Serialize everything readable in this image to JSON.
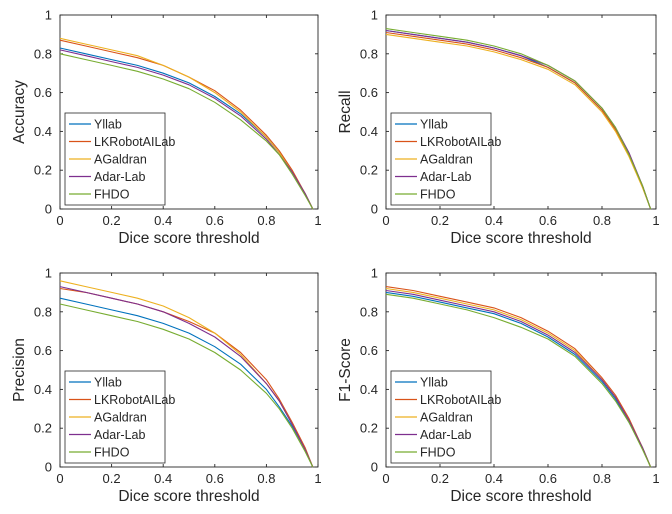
{
  "series_colors": {
    "Yllab": "#0072BD",
    "LKRobotAILab": "#D95319",
    "AGaldran": "#EDB120",
    "Adar-Lab": "#7E2F8E",
    "FHDO": "#77AC30"
  },
  "chart_data": [
    {
      "type": "line",
      "xlabel": "Dice score threshold",
      "ylabel": "Accuracy",
      "xlim": [
        0,
        1
      ],
      "ylim": [
        0,
        1
      ],
      "xticks": [
        "0",
        "0.2",
        "0.4",
        "0.6",
        "0.8",
        "1"
      ],
      "yticks": [
        "0",
        "0.2",
        "0.4",
        "0.6",
        "0.8",
        "1"
      ],
      "legend_position": "bottom-left",
      "grid": false,
      "x": [
        0,
        0.1,
        0.2,
        0.3,
        0.4,
        0.5,
        0.6,
        0.7,
        0.8,
        0.85,
        0.9,
        0.95,
        0.98
      ],
      "series": [
        {
          "name": "Yllab",
          "values": [
            0.83,
            0.8,
            0.77,
            0.74,
            0.7,
            0.65,
            0.58,
            0.49,
            0.37,
            0.29,
            0.19,
            0.08,
            0.0
          ]
        },
        {
          "name": "LKRobotAILab",
          "values": [
            0.87,
            0.84,
            0.81,
            0.78,
            0.74,
            0.68,
            0.61,
            0.51,
            0.38,
            0.3,
            0.2,
            0.08,
            0.0
          ]
        },
        {
          "name": "AGaldran",
          "values": [
            0.88,
            0.85,
            0.82,
            0.79,
            0.74,
            0.68,
            0.6,
            0.5,
            0.37,
            0.29,
            0.19,
            0.08,
            0.0
          ]
        },
        {
          "name": "Adar-Lab",
          "values": [
            0.82,
            0.79,
            0.76,
            0.73,
            0.69,
            0.64,
            0.57,
            0.48,
            0.36,
            0.28,
            0.19,
            0.08,
            0.0
          ]
        },
        {
          "name": "FHDO",
          "values": [
            0.8,
            0.77,
            0.74,
            0.71,
            0.67,
            0.62,
            0.55,
            0.46,
            0.35,
            0.28,
            0.18,
            0.07,
            0.0
          ]
        }
      ]
    },
    {
      "type": "line",
      "xlabel": "Dice score threshold",
      "ylabel": "Recall",
      "xlim": [
        0,
        1
      ],
      "ylim": [
        0,
        1
      ],
      "xticks": [
        "0",
        "0.2",
        "0.4",
        "0.6",
        "0.8",
        "1"
      ],
      "yticks": [
        "0",
        "0.2",
        "0.4",
        "0.6",
        "0.8",
        "1"
      ],
      "legend_position": "bottom-left",
      "grid": false,
      "x": [
        0,
        0.1,
        0.2,
        0.3,
        0.4,
        0.5,
        0.6,
        0.7,
        0.8,
        0.85,
        0.9,
        0.95,
        0.98
      ],
      "series": [
        {
          "name": "Yllab",
          "values": [
            0.92,
            0.9,
            0.88,
            0.86,
            0.83,
            0.79,
            0.73,
            0.65,
            0.51,
            0.41,
            0.28,
            0.12,
            0.0
          ]
        },
        {
          "name": "LKRobotAILab",
          "values": [
            0.91,
            0.89,
            0.87,
            0.85,
            0.82,
            0.78,
            0.73,
            0.65,
            0.51,
            0.41,
            0.28,
            0.12,
            0.0
          ]
        },
        {
          "name": "AGaldran",
          "values": [
            0.9,
            0.88,
            0.86,
            0.84,
            0.81,
            0.77,
            0.72,
            0.64,
            0.5,
            0.4,
            0.27,
            0.11,
            0.0
          ]
        },
        {
          "name": "Adar-Lab",
          "values": [
            0.92,
            0.9,
            0.88,
            0.86,
            0.83,
            0.79,
            0.74,
            0.66,
            0.52,
            0.42,
            0.29,
            0.12,
            0.0
          ]
        },
        {
          "name": "FHDO",
          "values": [
            0.93,
            0.91,
            0.89,
            0.87,
            0.84,
            0.8,
            0.74,
            0.66,
            0.52,
            0.42,
            0.28,
            0.12,
            0.0
          ]
        }
      ]
    },
    {
      "type": "line",
      "xlabel": "Dice score threshold",
      "ylabel": "Precision",
      "xlim": [
        0,
        1
      ],
      "ylim": [
        0,
        1
      ],
      "xticks": [
        "0",
        "0.2",
        "0.4",
        "0.6",
        "0.8",
        "1"
      ],
      "yticks": [
        "0",
        "0.2",
        "0.4",
        "0.6",
        "0.8",
        "1"
      ],
      "legend_position": "bottom-left",
      "grid": false,
      "x": [
        0,
        0.1,
        0.2,
        0.3,
        0.4,
        0.5,
        0.6,
        0.7,
        0.8,
        0.85,
        0.9,
        0.95,
        0.98
      ],
      "series": [
        {
          "name": "Yllab",
          "values": [
            0.87,
            0.84,
            0.81,
            0.78,
            0.74,
            0.69,
            0.62,
            0.53,
            0.4,
            0.31,
            0.21,
            0.09,
            0.0
          ]
        },
        {
          "name": "LKRobotAILab",
          "values": [
            0.92,
            0.9,
            0.87,
            0.84,
            0.8,
            0.75,
            0.69,
            0.59,
            0.45,
            0.35,
            0.23,
            0.1,
            0.0
          ]
        },
        {
          "name": "AGaldran",
          "values": [
            0.96,
            0.93,
            0.9,
            0.87,
            0.83,
            0.77,
            0.69,
            0.58,
            0.43,
            0.34,
            0.22,
            0.09,
            0.0
          ]
        },
        {
          "name": "Adar-Lab",
          "values": [
            0.93,
            0.9,
            0.87,
            0.84,
            0.8,
            0.74,
            0.67,
            0.57,
            0.43,
            0.34,
            0.22,
            0.09,
            0.0
          ]
        },
        {
          "name": "FHDO",
          "values": [
            0.84,
            0.81,
            0.78,
            0.75,
            0.71,
            0.66,
            0.59,
            0.5,
            0.38,
            0.3,
            0.2,
            0.08,
            0.0
          ]
        }
      ]
    },
    {
      "type": "line",
      "xlabel": "Dice score threshold",
      "ylabel": "F1-Score",
      "xlim": [
        0,
        1
      ],
      "ylim": [
        0,
        1
      ],
      "xticks": [
        "0",
        "0.2",
        "0.4",
        "0.6",
        "0.8",
        "1"
      ],
      "yticks": [
        "0",
        "0.2",
        "0.4",
        "0.6",
        "0.8",
        "1"
      ],
      "legend_position": "bottom-left",
      "grid": false,
      "x": [
        0,
        0.1,
        0.2,
        0.3,
        0.4,
        0.5,
        0.6,
        0.7,
        0.8,
        0.85,
        0.9,
        0.95,
        0.98
      ],
      "series": [
        {
          "name": "Yllab",
          "values": [
            0.9,
            0.88,
            0.85,
            0.82,
            0.79,
            0.74,
            0.67,
            0.58,
            0.44,
            0.35,
            0.23,
            0.1,
            0.0
          ]
        },
        {
          "name": "LKRobotAILab",
          "values": [
            0.93,
            0.91,
            0.88,
            0.85,
            0.82,
            0.77,
            0.7,
            0.61,
            0.46,
            0.37,
            0.25,
            0.1,
            0.0
          ]
        },
        {
          "name": "AGaldran",
          "values": [
            0.92,
            0.9,
            0.87,
            0.84,
            0.81,
            0.76,
            0.69,
            0.6,
            0.45,
            0.36,
            0.24,
            0.1,
            0.0
          ]
        },
        {
          "name": "Adar-Lab",
          "values": [
            0.91,
            0.89,
            0.86,
            0.83,
            0.8,
            0.75,
            0.68,
            0.59,
            0.45,
            0.36,
            0.24,
            0.1,
            0.0
          ]
        },
        {
          "name": "FHDO",
          "values": [
            0.89,
            0.87,
            0.84,
            0.81,
            0.77,
            0.72,
            0.66,
            0.57,
            0.43,
            0.34,
            0.23,
            0.09,
            0.0
          ]
        }
      ]
    }
  ]
}
